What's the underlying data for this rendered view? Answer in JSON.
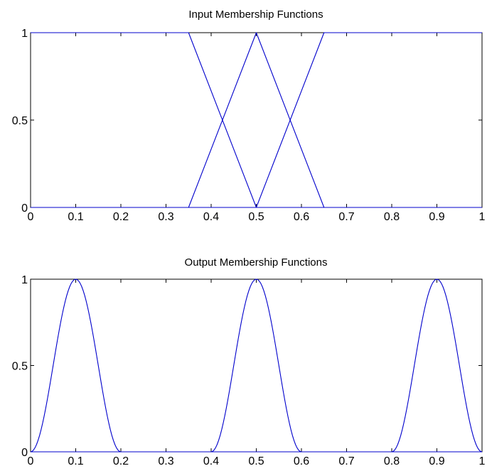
{
  "chart_data": [
    {
      "type": "line",
      "title": "Input Membership Functions",
      "xlabel": "",
      "ylabel": "",
      "xlim": [
        0,
        1
      ],
      "ylim": [
        0,
        1
      ],
      "grid": false,
      "xticks": [
        "0",
        "0.1",
        "0.2",
        "0.3",
        "0.4",
        "0.5",
        "0.6",
        "0.7",
        "0.8",
        "0.9",
        "1"
      ],
      "yticks": [
        "0",
        "0.5",
        "1"
      ],
      "line_color": "#0000cc",
      "series": [
        {
          "x": [
            0,
            0.35,
            0.5,
            1
          ],
          "y": [
            1,
            1,
            0,
            0
          ]
        },
        {
          "x": [
            0,
            0.35,
            0.5,
            0.65,
            1
          ],
          "y": [
            0,
            0,
            1,
            0,
            0
          ]
        },
        {
          "x": [
            0,
            0.5,
            0.65,
            1
          ],
          "y": [
            0,
            0,
            1,
            1
          ]
        }
      ]
    },
    {
      "type": "line",
      "title": "Output Membership Functions",
      "xlabel": "",
      "ylabel": "",
      "xlim": [
        0,
        1
      ],
      "ylim": [
        0,
        1
      ],
      "grid": false,
      "xticks": [
        "0",
        "0.1",
        "0.2",
        "0.3",
        "0.4",
        "0.5",
        "0.6",
        "0.7",
        "0.8",
        "0.9",
        "1"
      ],
      "yticks": [
        "0",
        "0.5",
        "1"
      ],
      "line_color": "#0000cc",
      "series": [
        {
          "x": [
            0,
            0.1,
            0.2,
            1
          ],
          "y": [
            0,
            1,
            0,
            0
          ],
          "shape": "bell"
        },
        {
          "x": [
            0,
            0.4,
            0.5,
            0.6,
            1
          ],
          "y": [
            0,
            0,
            1,
            0,
            0
          ],
          "shape": "bell"
        },
        {
          "x": [
            0,
            0.8,
            0.9,
            1
          ],
          "y": [
            0,
            0,
            1,
            0
          ],
          "shape": "bell"
        }
      ]
    }
  ]
}
